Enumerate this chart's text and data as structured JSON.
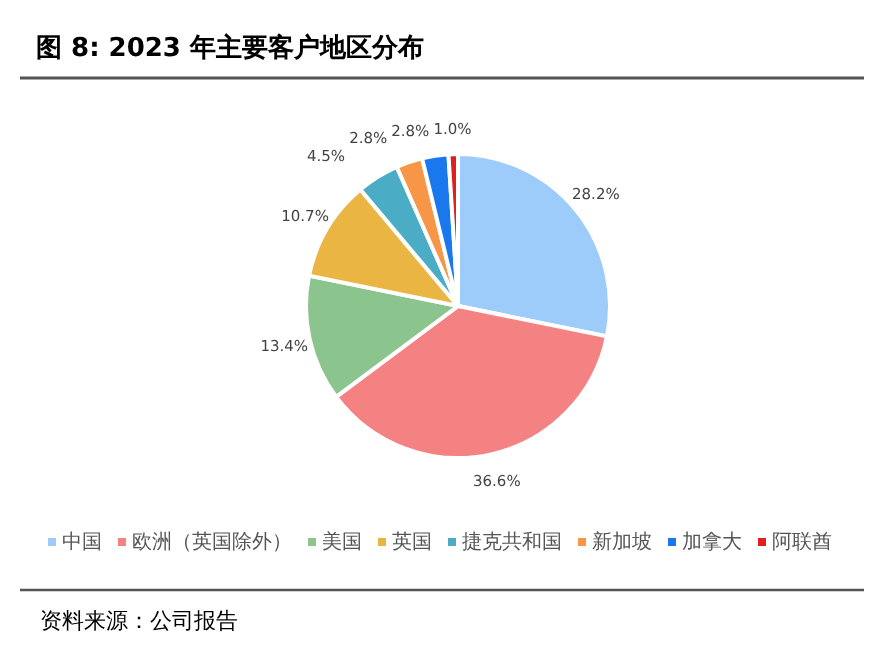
{
  "chart_data": {
    "type": "pie",
    "title": "图 8:  2023 年主要客户地区分布",
    "categories": [
      "中国",
      "欧洲（英国除外）",
      "美国",
      "英国",
      "捷克共和国",
      "新加坡",
      "加拿大",
      "阿联酋"
    ],
    "values": [
      28.2,
      36.6,
      13.4,
      10.7,
      4.5,
      2.8,
      2.8,
      1.0
    ],
    "value_labels": [
      "28.2%",
      "36.6%",
      "13.4%",
      "10.7%",
      "4.5%",
      "2.8%",
      "2.8%",
      "1.0%"
    ],
    "colors": [
      "#9dcbfa",
      "#f58282",
      "#8cc48e",
      "#eab542",
      "#4bacc6",
      "#f79646",
      "#1a78ee",
      "#e0201c"
    ],
    "legend": "bottom",
    "annotations": [
      "资料来源：公司报告"
    ]
  }
}
